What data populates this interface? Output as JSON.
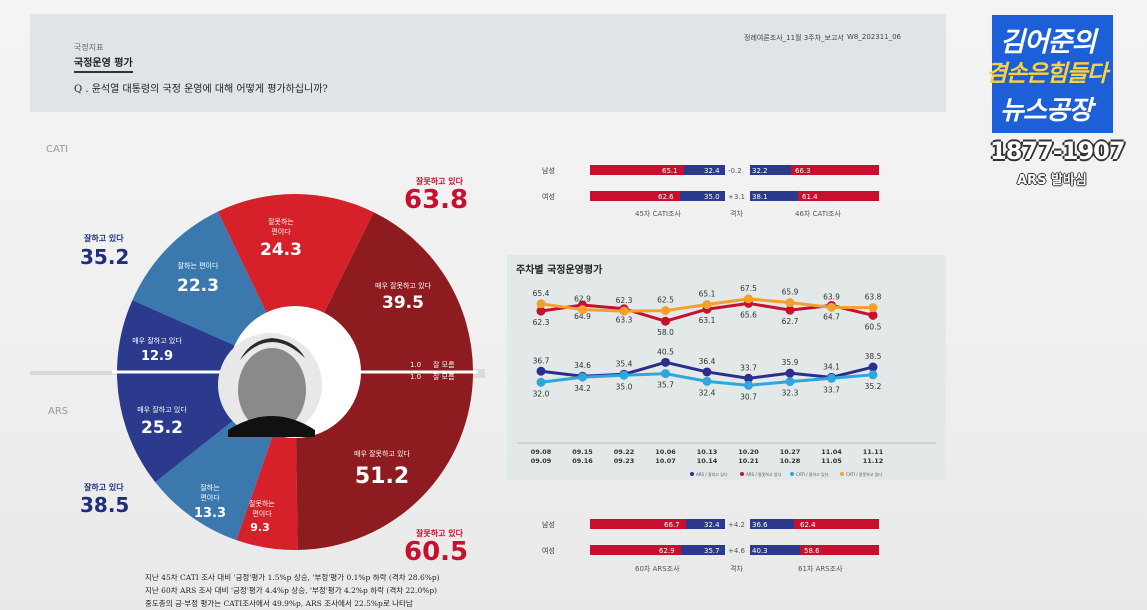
{
  "header": {
    "category": "국정지표",
    "title": "국정운영 평가",
    "question": "Q . 윤석열 대통령의 국정 운영에 대해 어떻게 평가하십니까?",
    "report": "정례여론조사_11월 3주차_보고서",
    "code": "W8_202311_06"
  },
  "cati": {
    "label": "CATI",
    "positive_label": "잘하고 있다",
    "positive_value": "35.2",
    "negative_label": "잘못하고 있다",
    "negative_value": "63.8",
    "slices": [
      {
        "label1": "잘하는 편이다",
        "label2": "",
        "value": "22.3"
      },
      {
        "label1": "매우 잘하고 있다",
        "label2": "",
        "value": "12.9"
      },
      {
        "label1": "잘못하는",
        "label2": "편이다",
        "value": "24.3"
      },
      {
        "label1": "매우 잘못하고 있다",
        "label2": "",
        "value": "39.5"
      }
    ],
    "dk": "1.0",
    "dk_label": "잘 모름"
  },
  "ars": {
    "label": "ARS",
    "positive_label": "잘하고 있다",
    "positive_value": "38.5",
    "negative_label": "잘못하고 있다",
    "negative_value": "60.5",
    "slices": [
      {
        "label1": "매우 잘하고 있다",
        "label2": "",
        "value": "25.2"
      },
      {
        "label1": "잘하는",
        "label2": "편이다",
        "value": "13.3"
      },
      {
        "label1": "잘못하는",
        "label2": "편이다",
        "value": "9.3"
      },
      {
        "label1": "매우 잘못하고 있다",
        "label2": "",
        "value": "51.2"
      }
    ],
    "dk": "1.0",
    "dk_label": "잘 모름"
  },
  "gender_cati": {
    "rows": [
      {
        "label": "남성",
        "prev_neg": "65.1",
        "prev_pos": "32.4",
        "diff": "-0.2",
        "cur_pos": "32.2",
        "cur_neg": "66.3"
      },
      {
        "label": "여성",
        "prev_neg": "62.6",
        "prev_pos": "35.0",
        "diff": "+3.1",
        "cur_pos": "38.1",
        "cur_neg": "61.4"
      }
    ],
    "prev_label": "45차 CATI조사",
    "diff_label": "격차",
    "cur_label": "46차 CATI조사"
  },
  "gender_ars": {
    "rows": [
      {
        "label": "남성",
        "prev_neg": "66.7",
        "prev_pos": "32.4",
        "diff": "+4.2",
        "cur_pos": "36.6",
        "cur_neg": "62.4"
      },
      {
        "label": "여성",
        "prev_neg": "62.9",
        "prev_pos": "35.7",
        "diff": "+4.6",
        "cur_pos": "40.3",
        "cur_neg": "58.6"
      }
    ],
    "prev_label": "60차 ARS조사",
    "diff_label": "격차",
    "cur_label": "61차 ARS조사"
  },
  "chart_data": {
    "type": "line",
    "title": "주차별 국정운영평가",
    "categories": [
      [
        "09.08",
        "09.09"
      ],
      [
        "09.15",
        "09.16"
      ],
      [
        "09.22",
        "09.23"
      ],
      [
        "10.06",
        "10.07"
      ],
      [
        "10.13",
        "10.14"
      ],
      [
        "10.20",
        "10.21"
      ],
      [
        "10.27",
        "10.28"
      ],
      [
        "11.04",
        "11.05"
      ],
      [
        "11.11",
        "11.12"
      ]
    ],
    "ylim": [
      25,
      75
    ],
    "series": [
      {
        "name": "ARS / 잘하고 있다",
        "color": "#2b2e8c",
        "values": [
          36.7,
          34.6,
          35.4,
          40.5,
          36.4,
          33.7,
          35.9,
          34.1,
          38.5
        ]
      },
      {
        "name": "ARS / 잘못하고 있다",
        "color": "#c8102e",
        "values": [
          62.3,
          64.9,
          63.3,
          58.0,
          63.1,
          65.6,
          62.7,
          64.7,
          60.5
        ]
      },
      {
        "name": "CATI / 잘하고 있다",
        "color": "#2fa7dd",
        "values": [
          32.0,
          34.2,
          35.0,
          35.7,
          32.4,
          30.7,
          32.3,
          33.7,
          35.2
        ]
      },
      {
        "name": "CATI / 잘못하고 있다",
        "color": "#f3a12c",
        "values": [
          65.4,
          62.9,
          62.3,
          62.5,
          65.1,
          67.5,
          65.9,
          63.9,
          63.8
        ]
      }
    ],
    "legend": [
      "ARS / 잘하고 있다",
      "ARS / 잘못하고 있다",
      "CATI / 잘하고 있다",
      "CATI / 잘못하고 있다"
    ]
  },
  "footnotes": [
    "지난 45차 CATI 조사 대비 '긍정'평가 1.5%p 상승, '부정'평가 0.1%p 하락 (격차 28.6%p)",
    "지난 60차 ARS 조사 대비 '긍정'평가 4.4%p 상승, '부정'평가 4.2%p 하락 (격차 22.0%p)",
    "중도층의 긍·부정 평가는 CATI조사에서 49.9%p, ARS 조사에서 22.5%p로 나타남"
  ],
  "logo": {
    "line1": "김어준의",
    "line2": "겸손은힘들다",
    "line3": "뉴스공장",
    "number": "1877-1907",
    "sub": "ARS 발바심"
  },
  "colors": {
    "red": "#c8102e",
    "darkred": "#8e1b1f",
    "blue": "#2b3a8c",
    "lightblue": "#3a78ad",
    "orange": "#f3a12c",
    "cyan": "#2fa7dd"
  }
}
